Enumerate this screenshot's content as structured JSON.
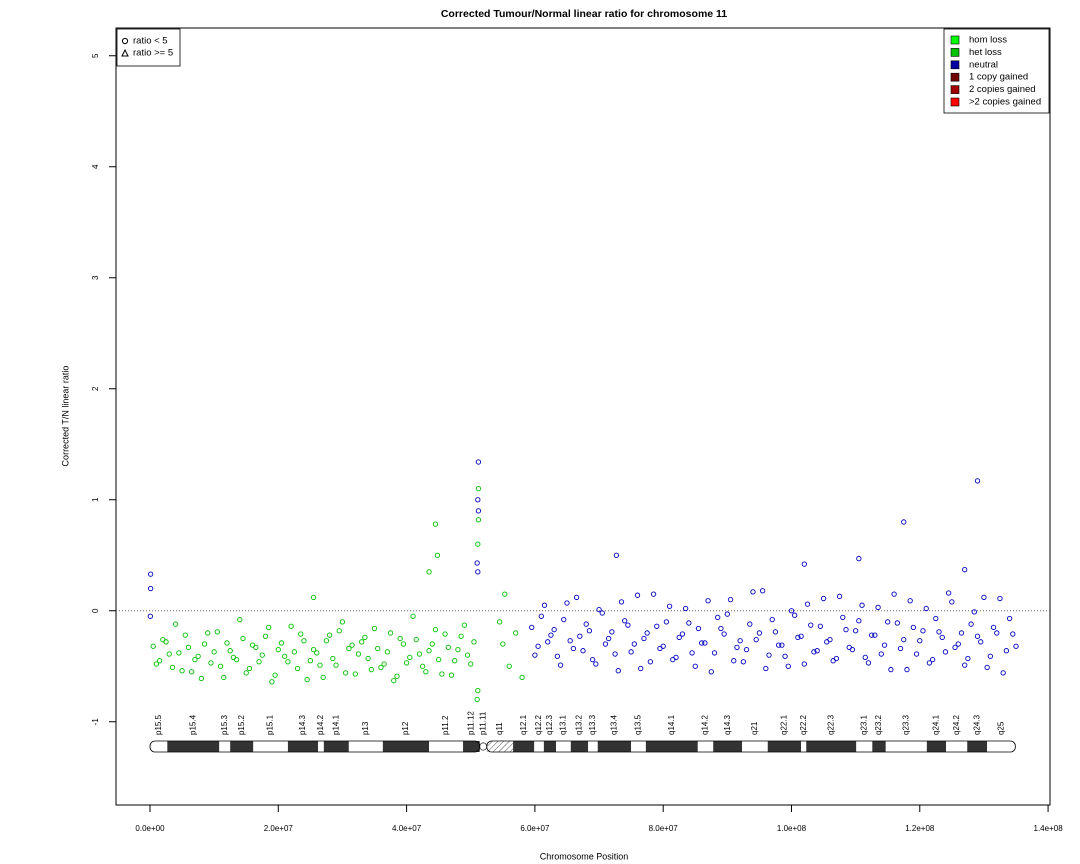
{
  "chart_data": {
    "type": "scatter",
    "title": "Corrected Tumour/Normal linear ratio for chromosome  11",
    "x_label": "Chromosome Position",
    "y_label": "Corrected T/N linear ratio",
    "xlim": [
      -5300000.0,
      140300000.0
    ],
    "ylim": [
      -1.75,
      5.25
    ],
    "xticks": [
      {
        "value": 0,
        "label": "0.0e+00"
      },
      {
        "value": 20000000.0,
        "label": "2.0e+07"
      },
      {
        "value": 40000000.0,
        "label": "4.0e+07"
      },
      {
        "value": 60000000.0,
        "label": "6.0e+07"
      },
      {
        "value": 80000000.0,
        "label": "8.0e+07"
      },
      {
        "value": 100000000.0,
        "label": "1.0e+08"
      },
      {
        "value": 120000000.0,
        "label": "1.2e+08"
      },
      {
        "value": 140000000.0,
        "label": "1.4e+08"
      }
    ],
    "yticks": [
      -1,
      0,
      1,
      2,
      3,
      4,
      5
    ],
    "hline": 0,
    "shape_legend": {
      "position": "top-left",
      "entries": [
        {
          "label": "ratio < 5",
          "shape": "circle"
        },
        {
          "label": "ratio >= 5",
          "shape": "triangle"
        }
      ]
    },
    "color_legend": {
      "position": "top-right",
      "entries": [
        {
          "name": "hom loss",
          "color": "#00ff00"
        },
        {
          "name": "het loss",
          "color": "#00c000"
        },
        {
          "name": "neutral",
          "color": "#0000a0"
        },
        {
          "name": "1 copy gained",
          "color": "#700000"
        },
        {
          "name": "2 copies gained",
          "color": "#a00000"
        },
        {
          "name": ">2 copies gained",
          "color": "#ff0000"
        }
      ]
    },
    "series": [
      {
        "color": "#00c000",
        "x": [
          500000.0,
          1500000.0,
          2500000.0,
          3500000.0,
          4500000.0,
          5500000.0,
          6500000.0,
          7500000.0,
          8500000.0,
          9500000.0,
          10500000.0,
          11500000.0,
          12500000.0,
          13500000.0,
          14500000.0,
          15500000.0,
          16500000.0,
          17500000.0,
          18500000.0,
          19500000.0,
          20500000.0,
          21500000.0,
          22500000.0,
          23500000.0,
          24500000.0,
          25500000.0,
          26500000.0,
          27500000.0,
          28500000.0,
          29500000.0,
          30500000.0,
          31500000.0,
          32500000.0,
          33500000.0,
          34500000.0,
          35500000.0,
          36500000.0,
          37500000.0,
          38500000.0,
          39500000.0,
          40500000.0,
          41500000.0,
          42500000.0,
          43500000.0,
          44500000.0,
          45500000.0,
          46500000.0,
          47500000.0,
          48500000.0,
          49500000.0,
          50500000.0,
          1000000.0,
          2000000.0,
          3000000.0,
          4000000.0,
          5000000.0,
          6000000.0,
          7000000.0,
          8000000.0,
          9000000.0,
          10000000.0,
          11000000.0,
          12000000.0,
          13000000.0,
          14000000.0,
          15000000.0,
          16000000.0,
          17000000.0,
          18000000.0,
          19000000.0,
          20000000.0,
          21000000.0,
          22000000.0,
          23000000.0,
          24000000.0,
          25000000.0,
          26000000.0,
          27000000.0,
          28000000.0,
          29000000.0,
          30000000.0,
          31000000.0,
          32000000.0,
          33000000.0,
          34000000.0,
          35000000.0,
          36000000.0,
          37000000.0,
          38000000.0,
          39000000.0,
          40000000.0,
          41000000.0,
          42000000.0,
          43000000.0,
          44000000.0,
          45000000.0,
          46000000.0,
          47000000.0,
          48000000.0,
          49000000.0,
          50000000.0,
          44500000.0,
          44800000.0,
          43500000.0,
          25500000.0,
          51200000.0,
          51200000.0,
          51100000.0,
          51000000.0,
          51100000.0,
          55300000.0,
          55000000.0,
          56000000.0,
          57000000.0,
          58000000.0,
          54500000.0
        ],
        "values": [
          -0.32,
          -0.45,
          -0.28,
          -0.51,
          -0.38,
          -0.22,
          -0.55,
          -0.41,
          -0.3,
          -0.47,
          -0.19,
          -0.6,
          -0.36,
          -0.44,
          -0.25,
          -0.52,
          -0.33,
          -0.4,
          -0.15,
          -0.58,
          -0.29,
          -0.46,
          -0.37,
          -0.21,
          -0.62,
          -0.35,
          -0.49,
          -0.27,
          -0.43,
          -0.18,
          -0.56,
          -0.31,
          -0.39,
          -0.24,
          -0.53,
          -0.34,
          -0.48,
          -0.2,
          -0.59,
          -0.3,
          -0.42,
          -0.26,
          -0.5,
          -0.36,
          -0.17,
          -0.57,
          -0.33,
          -0.45,
          -0.23,
          -0.4,
          -0.28,
          -0.48,
          -0.26,
          -0.39,
          -0.12,
          -0.54,
          -0.33,
          -0.44,
          -0.61,
          -0.2,
          -0.37,
          -0.5,
          -0.29,
          -0.42,
          -0.08,
          -0.56,
          -0.31,
          -0.46,
          -0.23,
          -0.64,
          -0.35,
          -0.41,
          -0.14,
          -0.52,
          -0.27,
          -0.45,
          -0.38,
          -0.6,
          -0.22,
          -0.49,
          -0.1,
          -0.34,
          -0.57,
          -0.28,
          -0.43,
          -0.16,
          -0.51,
          -0.37,
          -0.63,
          -0.25,
          -0.47,
          -0.05,
          -0.39,
          -0.55,
          -0.3,
          -0.44,
          -0.21,
          -0.58,
          -0.35,
          -0.13,
          -0.48,
          0.78,
          0.5,
          0.35,
          0.12,
          1.1,
          0.82,
          0.6,
          -0.8,
          -0.72,
          0.15,
          -0.3,
          -0.5,
          -0.2,
          -0.6,
          -0.1
        ]
      },
      {
        "color": "#0000c0",
        "x": [
          59500000.0,
          60500000.0,
          61500000.0,
          62500000.0,
          63500000.0,
          64500000.0,
          65500000.0,
          66500000.0,
          67500000.0,
          68500000.0,
          69500000.0,
          70500000.0,
          71500000.0,
          72500000.0,
          73500000.0,
          74500000.0,
          75500000.0,
          76500000.0,
          77500000.0,
          78500000.0,
          79500000.0,
          80500000.0,
          81500000.0,
          82500000.0,
          83500000.0,
          84500000.0,
          85500000.0,
          86500000.0,
          87500000.0,
          88500000.0,
          89500000.0,
          90500000.0,
          91500000.0,
          92500000.0,
          93500000.0,
          94500000.0,
          95500000.0,
          96500000.0,
          97500000.0,
          98500000.0,
          99500000.0,
          100500000.0,
          101500000.0,
          102500000.0,
          103500000.0,
          104500000.0,
          105500000.0,
          106500000.0,
          107500000.0,
          108500000.0,
          109500000.0,
          110500000.0,
          111500000.0,
          112500000.0,
          113500000.0,
          114500000.0,
          115500000.0,
          116500000.0,
          117500000.0,
          118500000.0,
          119500000.0,
          120500000.0,
          121500000.0,
          122500000.0,
          123500000.0,
          124500000.0,
          125500000.0,
          126500000.0,
          127500000.0,
          128500000.0,
          129500000.0,
          130500000.0,
          131500000.0,
          132500000.0,
          133500000.0,
          134500000.0,
          60000000.0,
          61000000.0,
          62000000.0,
          63000000.0,
          64000000.0,
          65000000.0,
          66000000.0,
          67000000.0,
          68000000.0,
          69000000.0,
          70000000.0,
          71000000.0,
          72000000.0,
          73000000.0,
          74000000.0,
          75000000.0,
          76000000.0,
          77000000.0,
          78000000.0,
          79000000.0,
          80000000.0,
          81000000.0,
          82000000.0,
          83000000.0,
          84000000.0,
          85000000.0,
          86000000.0,
          87000000.0,
          88000000.0,
          89000000.0,
          90000000.0,
          91000000.0,
          92000000.0,
          93000000.0,
          94000000.0,
          95000000.0,
          96000000.0,
          97000000.0,
          98000000.0,
          99000000.0,
          100000000.0,
          101000000.0,
          102000000.0,
          103000000.0,
          104000000.0,
          105000000.0,
          106000000.0,
          107000000.0,
          108000000.0,
          109000000.0,
          110000000.0,
          111000000.0,
          112000000.0,
          113000000.0,
          114000000.0,
          115000000.0,
          116000000.0,
          117000000.0,
          118000000.0,
          119000000.0,
          120000000.0,
          121000000.0,
          122000000.0,
          123000000.0,
          124000000.0,
          125000000.0,
          126000000.0,
          127000000.0,
          128000000.0,
          129000000.0,
          130000000.0,
          131000000.0,
          132000000.0,
          133000000.0,
          134000000.0,
          135000000.0,
          129000000.0,
          117500000.0,
          72700000.0,
          110500000.0,
          100000.0,
          100000.0,
          51200000.0,
          51100000.0,
          51200000.0,
          51000000.0,
          51100000.0,
          50000.0,
          102000000.0,
          127000000.0
        ],
        "values": [
          -0.15,
          -0.32,
          0.05,
          -0.22,
          -0.41,
          -0.08,
          -0.27,
          0.12,
          -0.36,
          -0.18,
          -0.48,
          -0.02,
          -0.25,
          -0.39,
          0.08,
          -0.13,
          -0.3,
          -0.52,
          -0.2,
          0.15,
          -0.34,
          -0.1,
          -0.44,
          -0.24,
          0.02,
          -0.38,
          -0.16,
          -0.29,
          -0.55,
          -0.06,
          -0.21,
          0.1,
          -0.33,
          -0.46,
          -0.12,
          -0.26,
          0.18,
          -0.4,
          -0.19,
          -0.31,
          -0.5,
          -0.04,
          -0.23,
          0.06,
          -0.37,
          -0.14,
          -0.28,
          -0.45,
          0.13,
          -0.17,
          -0.35,
          -0.09,
          -0.42,
          -0.22,
          0.03,
          -0.31,
          -0.53,
          -0.11,
          -0.26,
          0.09,
          -0.39,
          -0.18,
          -0.47,
          -0.07,
          -0.24,
          0.16,
          -0.33,
          -0.2,
          -0.43,
          -0.01,
          -0.28,
          -0.51,
          -0.15,
          0.11,
          -0.36,
          -0.21,
          -0.4,
          -0.05,
          -0.28,
          -0.17,
          -0.49,
          0.07,
          -0.34,
          -0.23,
          -0.12,
          -0.44,
          0.01,
          -0.3,
          -0.19,
          -0.54,
          -0.09,
          -0.37,
          0.14,
          -0.25,
          -0.46,
          -0.14,
          -0.32,
          0.04,
          -0.42,
          -0.21,
          -0.11,
          -0.5,
          -0.29,
          0.09,
          -0.38,
          -0.16,
          -0.03,
          -0.45,
          -0.27,
          -0.35,
          0.17,
          -0.2,
          -0.52,
          -0.08,
          -0.31,
          -0.41,
          0.0,
          -0.24,
          -0.48,
          -0.13,
          -0.36,
          0.11,
          -0.26,
          -0.43,
          -0.06,
          -0.33,
          -0.18,
          0.05,
          -0.47,
          -0.22,
          -0.39,
          -0.1,
          0.15,
          -0.34,
          -0.53,
          -0.15,
          -0.27,
          0.02,
          -0.44,
          -0.19,
          -0.37,
          0.08,
          -0.3,
          -0.49,
          -0.12,
          -0.23,
          0.12,
          -0.41,
          -0.2,
          -0.56,
          -0.07,
          -0.32,
          1.17,
          0.8,
          0.5,
          0.47,
          0.33,
          0.2,
          1.34,
          1.0,
          0.9,
          0.43,
          0.35,
          -0.05,
          0.42,
          0.37
        ]
      }
    ],
    "bands": [
      {
        "name": "p15.5",
        "start": 0,
        "end": 2700000.0,
        "stain": "gneg"
      },
      {
        "name": "p15.4",
        "start": 2700000.0,
        "end": 10800000.0,
        "stain": "gpos"
      },
      {
        "name": "p15.3",
        "start": 10800000.0,
        "end": 12500000.0,
        "stain": "gneg"
      },
      {
        "name": "p15.2",
        "start": 12500000.0,
        "end": 16100000.0,
        "stain": "gpos"
      },
      {
        "name": "p15.1",
        "start": 16100000.0,
        "end": 21500000.0,
        "stain": "gneg"
      },
      {
        "name": "p14.3",
        "start": 21500000.0,
        "end": 26200000.0,
        "stain": "gpos"
      },
      {
        "name": "p14.2",
        "start": 26200000.0,
        "end": 27100000.0,
        "stain": "gneg"
      },
      {
        "name": "p14.1",
        "start": 27100000.0,
        "end": 31000000.0,
        "stain": "gpos"
      },
      {
        "name": "p13",
        "start": 31000000.0,
        "end": 36300000.0,
        "stain": "gneg"
      },
      {
        "name": "p12",
        "start": 36300000.0,
        "end": 43500000.0,
        "stain": "gpos"
      },
      {
        "name": "p11.2",
        "start": 43500000.0,
        "end": 48800000.0,
        "stain": "gneg"
      },
      {
        "name": "p11.12",
        "start": 48800000.0,
        "end": 51400000.0,
        "stain": "gpos"
      },
      {
        "name": "p11.11",
        "start": 51400000.0,
        "end": 52500000.0,
        "stain": "acen"
      },
      {
        "name": "q11",
        "start": 52500000.0,
        "end": 56600000.0,
        "stain": "gvar"
      },
      {
        "name": "q12.1",
        "start": 56600000.0,
        "end": 59900000.0,
        "stain": "gpos"
      },
      {
        "name": "q12.2",
        "start": 59900000.0,
        "end": 61400000.0,
        "stain": "gneg"
      },
      {
        "name": "q12.3",
        "start": 61400000.0,
        "end": 63300000.0,
        "stain": "gpos"
      },
      {
        "name": "q13.1",
        "start": 63300000.0,
        "end": 65600000.0,
        "stain": "gneg"
      },
      {
        "name": "q13.2",
        "start": 65600000.0,
        "end": 68300000.0,
        "stain": "gpos"
      },
      {
        "name": "q13.3",
        "start": 68300000.0,
        "end": 69800000.0,
        "stain": "gneg"
      },
      {
        "name": "q13.4",
        "start": 69800000.0,
        "end": 75000000.0,
        "stain": "gpos"
      },
      {
        "name": "q13.5",
        "start": 75000000.0,
        "end": 77300000.0,
        "stain": "gneg"
      },
      {
        "name": "q14.1",
        "start": 77300000.0,
        "end": 85400000.0,
        "stain": "gpos"
      },
      {
        "name": "q14.2",
        "start": 85400000.0,
        "end": 87800000.0,
        "stain": "gneg"
      },
      {
        "name": "q14.3",
        "start": 87800000.0,
        "end": 92300000.0,
        "stain": "gpos"
      },
      {
        "name": "q21",
        "start": 92300000.0,
        "end": 96300000.0,
        "stain": "gneg"
      },
      {
        "name": "q22.1",
        "start": 96300000.0,
        "end": 101500000.0,
        "stain": "gpos"
      },
      {
        "name": "q22.2",
        "start": 101500000.0,
        "end": 102300000.0,
        "stain": "gneg"
      },
      {
        "name": "q22.3",
        "start": 102300000.0,
        "end": 110100000.0,
        "stain": "gpos"
      },
      {
        "name": "q23.1",
        "start": 110100000.0,
        "end": 112600000.0,
        "stain": "gneg"
      },
      {
        "name": "q23.2",
        "start": 112600000.0,
        "end": 114700000.0,
        "stain": "gpos"
      },
      {
        "name": "q23.3",
        "start": 114700000.0,
        "end": 121100000.0,
        "stain": "gneg"
      },
      {
        "name": "q24.1",
        "start": 121100000.0,
        "end": 124100000.0,
        "stain": "gpos"
      },
      {
        "name": "q24.2",
        "start": 124100000.0,
        "end": 127400000.0,
        "stain": "gneg"
      },
      {
        "name": "q24.3",
        "start": 127400000.0,
        "end": 130500000.0,
        "stain": "gpos"
      },
      {
        "name": "q25",
        "start": 130500000.0,
        "end": 134900000.0,
        "stain": "gneg"
      }
    ]
  }
}
